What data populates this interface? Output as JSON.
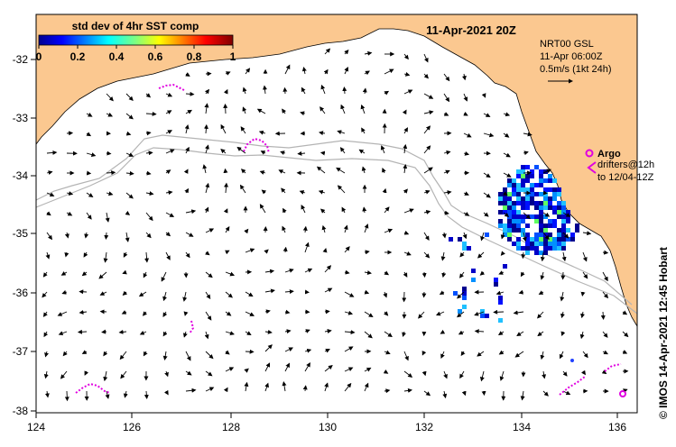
{
  "map": {
    "date_label": "11-Apr-2021 20Z",
    "credit": "© IMOS 14-Apr-2021 12:45 Hobart",
    "legend": {
      "title": "std dev of 4hr SST comp",
      "ticks": [
        "0",
        "0.2",
        "0.4",
        "0.6",
        "0.8",
        "1"
      ]
    },
    "current_info": [
      "NRT00 GSL",
      "11-Apr 06:00Z",
      "0.5m/s (1kt 24h)"
    ],
    "argo": {
      "title": "Argo",
      "lines": [
        "drifters@12h",
        "to 12/04-12Z"
      ]
    },
    "axes": {
      "x_ticks": [
        "124",
        "126",
        "128",
        "130",
        "132",
        "134",
        "136"
      ],
      "y_ticks": [
        "-32",
        "-33",
        "-34",
        "-35",
        "-36",
        "-37",
        "-38"
      ]
    },
    "colors": {
      "land": "#fbc890",
      "sea": "#ffffff",
      "drifter": "#e000e0",
      "contour": "#b4b4b4"
    }
  }
}
